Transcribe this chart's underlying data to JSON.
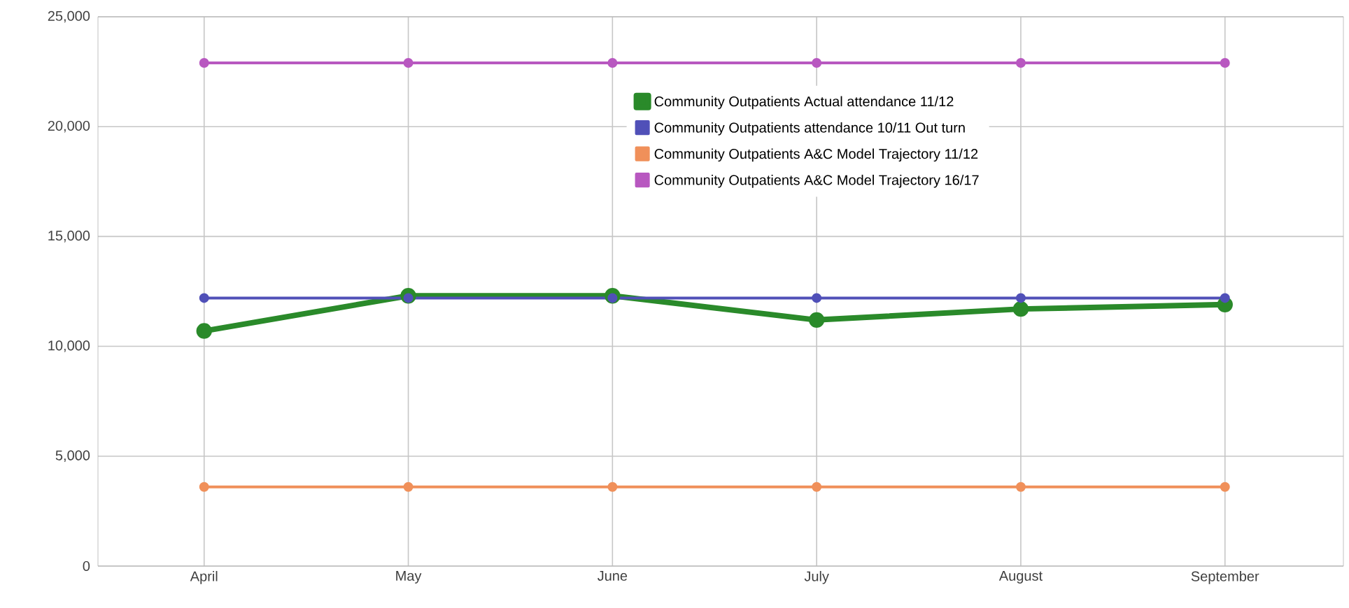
{
  "chart_data": {
    "type": "line",
    "categories": [
      "April",
      "May",
      "June",
      "July",
      "August",
      "September"
    ],
    "series": [
      {
        "name": "Community Outpatients Actual attendance 11/12",
        "color": "#2a8a2a",
        "values": [
          10700,
          12300,
          12300,
          11200,
          11700,
          11900
        ]
      },
      {
        "name": "Community Outpatients attendance 10/11 Out turn",
        "color": "#5050b8",
        "values": [
          12200,
          12200,
          12200,
          12200,
          12200,
          12200
        ]
      },
      {
        "name": "Community Outpatients A&C Model Trajectory 11/12",
        "color": "#f0905a",
        "values": [
          3600,
          3600,
          3600,
          3600,
          3600,
          3600
        ]
      },
      {
        "name": "Community Outpatients A&C Model Trajectory 16/17",
        "color": "#b858c0",
        "values": [
          22900,
          22900,
          22900,
          22900,
          22900,
          22900
        ]
      }
    ],
    "ylim": [
      0,
      25000
    ],
    "yticks": [
      {
        "value": 0,
        "label": "0"
      },
      {
        "value": 5000,
        "label": "5,000"
      },
      {
        "value": 10000,
        "label": "10,000"
      },
      {
        "value": 15000,
        "label": "15,000"
      },
      {
        "value": 20000,
        "label": "20,000"
      },
      {
        "value": 25000,
        "label": "25,000"
      }
    ],
    "grid": true,
    "legend": "top",
    "marker": "circle",
    "line_style": "solid"
  }
}
